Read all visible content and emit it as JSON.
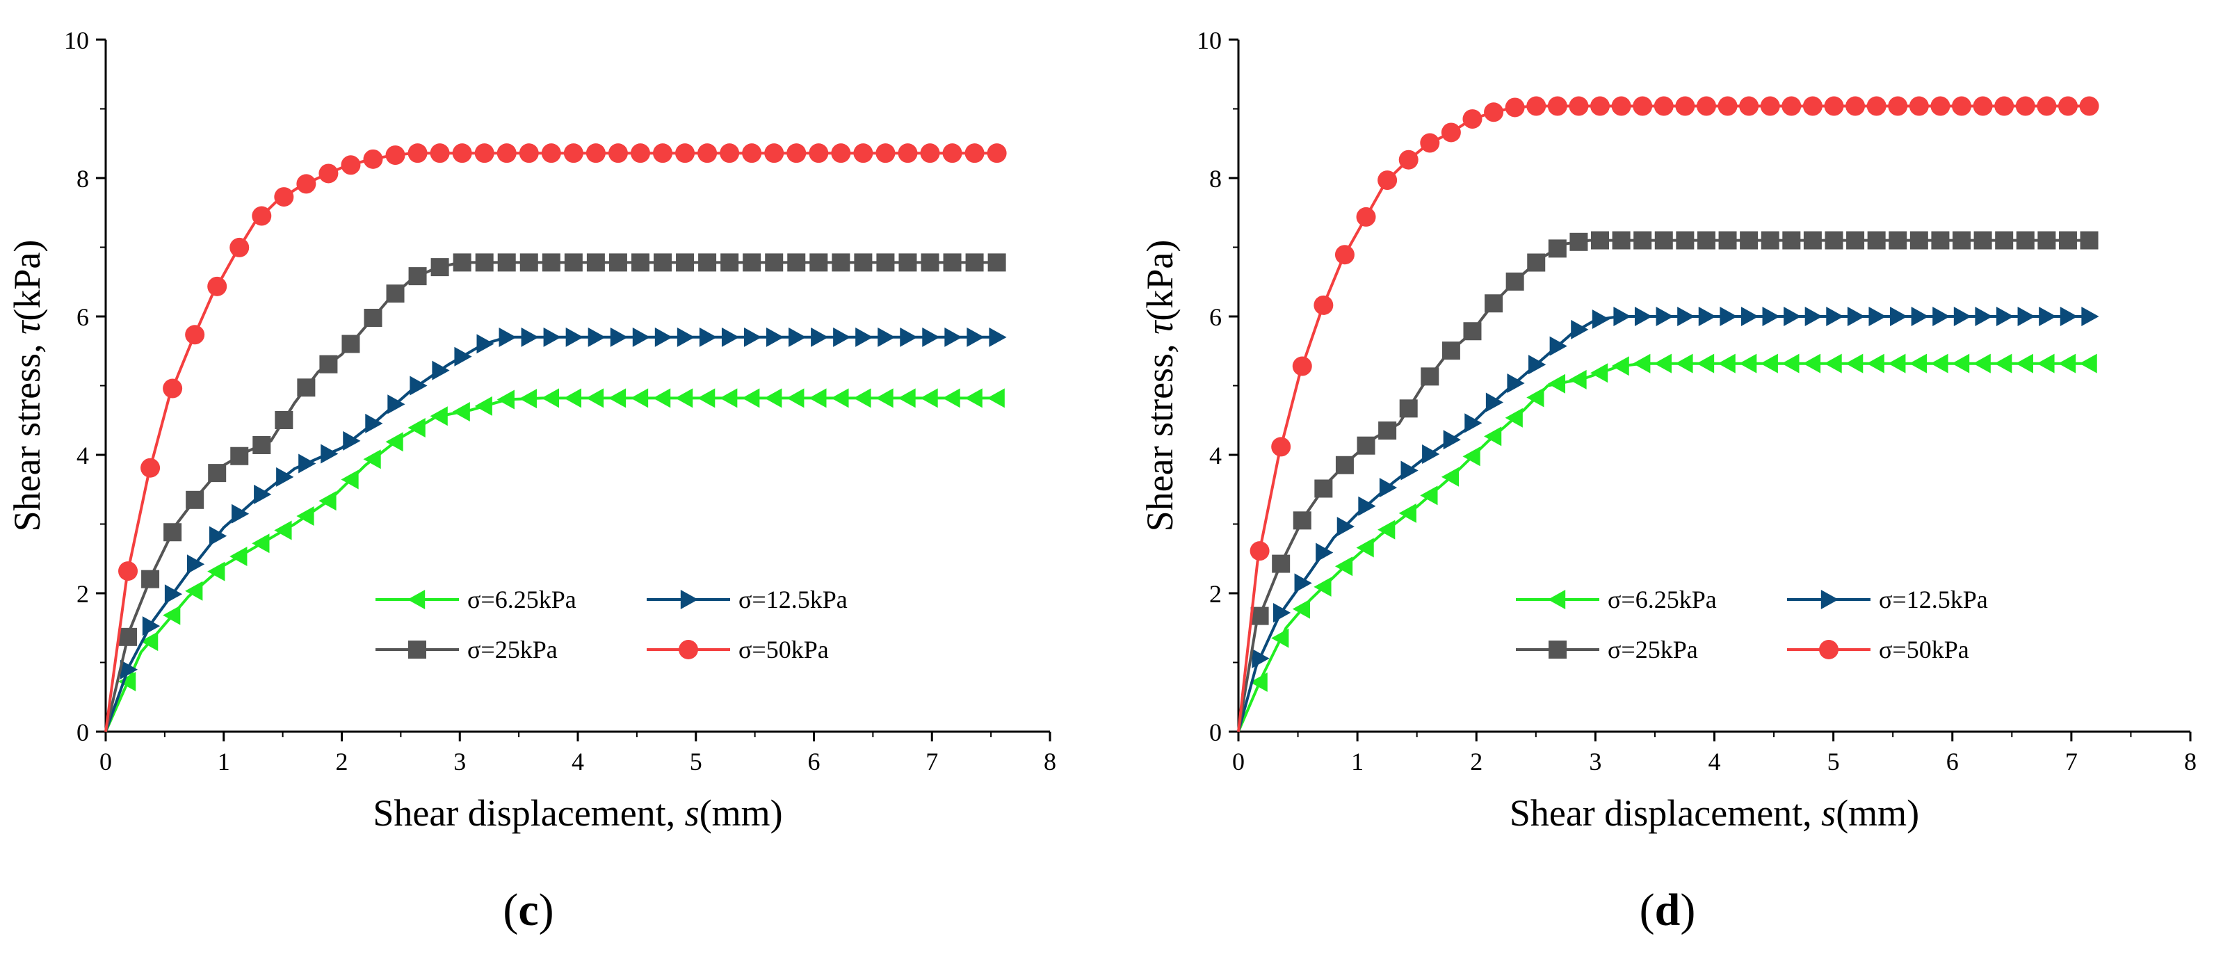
{
  "chart_data": [
    {
      "type": "line",
      "panel_label": "c",
      "xlabel_main": "Shear displacement, ",
      "xlabel_var": "s",
      "xlabel_unit": "(mm)",
      "ylabel_main": "Shear stress, ",
      "ylabel_var": "τ",
      "ylabel_unit": "(kPa)",
      "xlim": [
        0,
        8
      ],
      "ylim": [
        0,
        10
      ],
      "xticks": [
        "0",
        "1",
        "2",
        "3",
        "4",
        "5",
        "6",
        "7",
        "8"
      ],
      "yticks": [
        "0",
        "2",
        "4",
        "6",
        "8",
        "10"
      ],
      "grid": false,
      "legend_position": "bottom-right",
      "series": [
        {
          "name": "σ=6.25kPa",
          "marker": "triangle-left",
          "color": "#22ee22",
          "x_max": 7.55,
          "points": [
            [
              0,
              0
            ],
            [
              0.3,
              1.15
            ],
            [
              0.7,
              1.95
            ],
            [
              1.0,
              2.4
            ],
            [
              1.3,
              2.7
            ],
            [
              1.6,
              3.0
            ],
            [
              1.9,
              3.35
            ],
            [
              2.2,
              3.85
            ],
            [
              2.5,
              4.25
            ],
            [
              2.8,
              4.55
            ],
            [
              3.1,
              4.65
            ],
            [
              3.4,
              4.8
            ],
            [
              3.7,
              4.82
            ],
            [
              7.55,
              4.82
            ]
          ]
        },
        {
          "name": "σ=12.5kPa",
          "marker": "triangle-right",
          "color": "#0a4a7a",
          "x_max": 7.55,
          "points": [
            [
              0,
              0
            ],
            [
              0.2,
              0.95
            ],
            [
              0.4,
              1.6
            ],
            [
              0.7,
              2.3
            ],
            [
              1.0,
              2.95
            ],
            [
              1.3,
              3.4
            ],
            [
              1.6,
              3.8
            ],
            [
              2.0,
              4.1
            ],
            [
              2.3,
              4.5
            ],
            [
              2.6,
              4.95
            ],
            [
              2.9,
              5.3
            ],
            [
              3.2,
              5.6
            ],
            [
              3.4,
              5.7
            ],
            [
              7.55,
              5.7
            ]
          ]
        },
        {
          "name": "σ=25kPa",
          "marker": "square",
          "color": "#555555",
          "x_max": 7.55,
          "points": [
            [
              0,
              0
            ],
            [
              0.2,
              1.45
            ],
            [
              0.4,
              2.3
            ],
            [
              0.6,
              3.0
            ],
            [
              0.8,
              3.45
            ],
            [
              1.0,
              3.85
            ],
            [
              1.2,
              4.05
            ],
            [
              1.4,
              4.2
            ],
            [
              1.6,
              4.75
            ],
            [
              1.8,
              5.2
            ],
            [
              2.0,
              5.45
            ],
            [
              2.2,
              5.85
            ],
            [
              2.4,
              6.25
            ],
            [
              2.6,
              6.55
            ],
            [
              2.8,
              6.7
            ],
            [
              3.0,
              6.78
            ],
            [
              7.55,
              6.78
            ]
          ]
        },
        {
          "name": "σ=50kPa",
          "marker": "circle",
          "color": "#f43f3f",
          "x_max": 7.55,
          "points": [
            [
              0,
              0
            ],
            [
              0.18,
              2.25
            ],
            [
              0.36,
              3.7
            ],
            [
              0.54,
              4.85
            ],
            [
              0.72,
              5.6
            ],
            [
              0.9,
              6.3
            ],
            [
              1.08,
              6.85
            ],
            [
              1.26,
              7.35
            ],
            [
              1.44,
              7.65
            ],
            [
              1.62,
              7.85
            ],
            [
              1.8,
              8.0
            ],
            [
              2.0,
              8.15
            ],
            [
              2.2,
              8.25
            ],
            [
              2.4,
              8.32
            ],
            [
              2.6,
              8.36
            ],
            [
              7.55,
              8.36
            ]
          ]
        }
      ]
    },
    {
      "type": "line",
      "panel_label": "d",
      "xlabel_main": "Shear displacement, ",
      "xlabel_var": "s",
      "xlabel_unit": "(mm)",
      "ylabel_main": "Shear stress, ",
      "ylabel_var": "τ",
      "ylabel_unit": "(kPa)",
      "xlim": [
        0,
        8
      ],
      "ylim": [
        0,
        10
      ],
      "xticks": [
        "0",
        "1",
        "2",
        "3",
        "4",
        "5",
        "6",
        "7",
        "8"
      ],
      "yticks": [
        "0",
        "2",
        "4",
        "6",
        "8",
        "10"
      ],
      "grid": false,
      "legend_position": "bottom-right",
      "series": [
        {
          "name": "σ=6.25kPa",
          "marker": "triangle-left",
          "color": "#22ee22",
          "x_max": 7.15,
          "points": [
            [
              0,
              0
            ],
            [
              0.2,
              0.8
            ],
            [
              0.4,
              1.5
            ],
            [
              0.6,
              1.9
            ],
            [
              0.9,
              2.4
            ],
            [
              1.2,
              2.85
            ],
            [
              1.5,
              3.25
            ],
            [
              1.8,
              3.7
            ],
            [
              2.1,
              4.2
            ],
            [
              2.4,
              4.65
            ],
            [
              2.6,
              5.0
            ],
            [
              2.9,
              5.1
            ],
            [
              3.2,
              5.28
            ],
            [
              3.4,
              5.32
            ],
            [
              7.15,
              5.32
            ]
          ]
        },
        {
          "name": "σ=12.5kPa",
          "marker": "triangle-right",
          "color": "#0a4a7a",
          "x_max": 7.15,
          "points": [
            [
              0,
              0
            ],
            [
              0.15,
              0.95
            ],
            [
              0.35,
              1.7
            ],
            [
              0.6,
              2.3
            ],
            [
              0.8,
              2.8
            ],
            [
              1.0,
              3.15
            ],
            [
              1.3,
              3.6
            ],
            [
              1.6,
              4.0
            ],
            [
              1.9,
              4.35
            ],
            [
              2.2,
              4.85
            ],
            [
              2.5,
              5.3
            ],
            [
              2.8,
              5.75
            ],
            [
              3.0,
              5.95
            ],
            [
              3.2,
              6.0
            ],
            [
              7.15,
              6.0
            ]
          ]
        },
        {
          "name": "σ=25kPa",
          "marker": "square",
          "color": "#555555",
          "x_max": 7.15,
          "points": [
            [
              0,
              0
            ],
            [
              0.15,
              1.55
            ],
            [
              0.35,
              2.4
            ],
            [
              0.55,
              3.1
            ],
            [
              0.75,
              3.6
            ],
            [
              0.95,
              3.95
            ],
            [
              1.15,
              4.25
            ],
            [
              1.35,
              4.45
            ],
            [
              1.55,
              5.0
            ],
            [
              1.75,
              5.45
            ],
            [
              1.95,
              5.75
            ],
            [
              2.15,
              6.2
            ],
            [
              2.35,
              6.55
            ],
            [
              2.55,
              6.85
            ],
            [
              2.75,
              7.05
            ],
            [
              2.95,
              7.1
            ],
            [
              7.15,
              7.1
            ]
          ]
        },
        {
          "name": "σ=50kPa",
          "marker": "circle",
          "color": "#f43f3f",
          "x_max": 7.15,
          "points": [
            [
              0,
              0
            ],
            [
              0.16,
              2.45
            ],
            [
              0.34,
              4.0
            ],
            [
              0.52,
              5.2
            ],
            [
              0.7,
              6.1
            ],
            [
              0.88,
              6.85
            ],
            [
              1.06,
              7.4
            ],
            [
              1.24,
              7.95
            ],
            [
              1.42,
              8.25
            ],
            [
              1.6,
              8.5
            ],
            [
              1.78,
              8.65
            ],
            [
              1.96,
              8.85
            ],
            [
              2.14,
              8.95
            ],
            [
              2.32,
              9.02
            ],
            [
              2.5,
              9.04
            ],
            [
              7.15,
              9.04
            ]
          ]
        }
      ]
    }
  ]
}
